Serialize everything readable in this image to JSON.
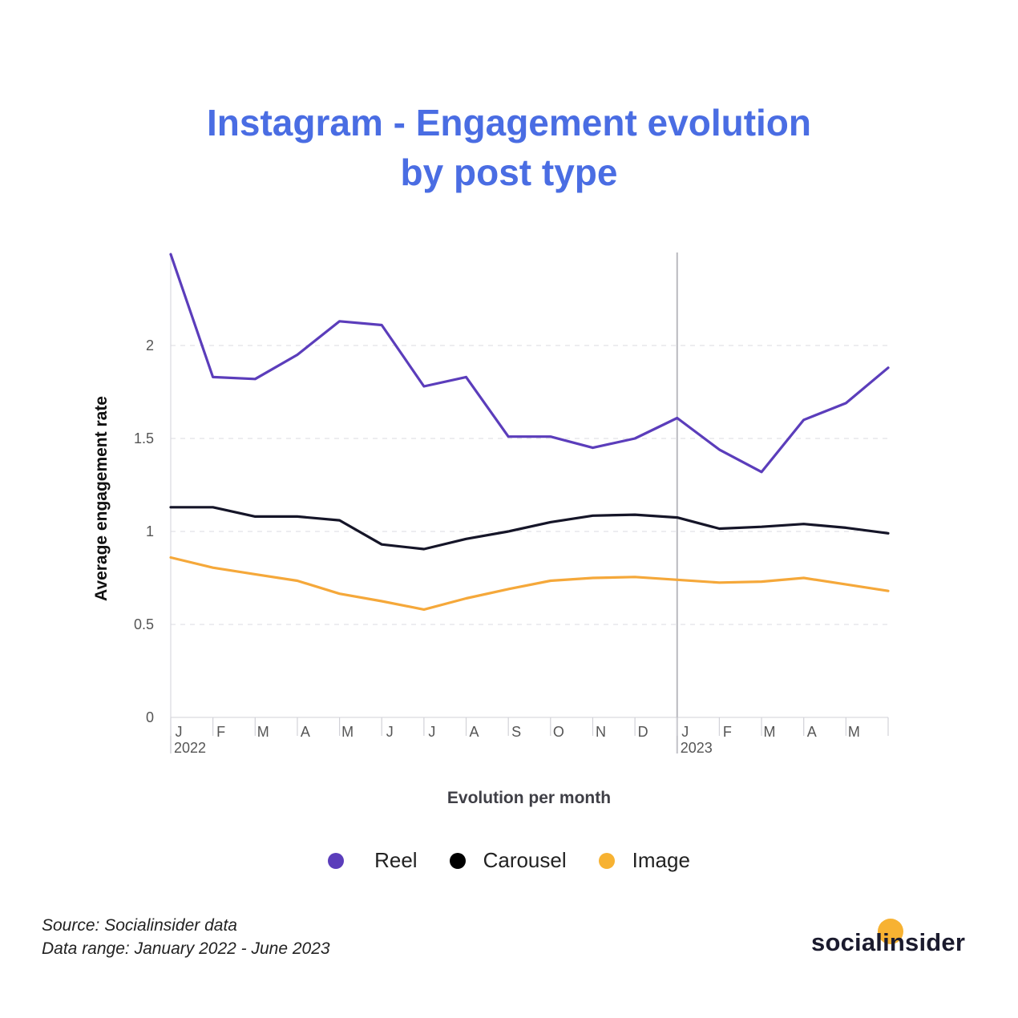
{
  "chart_data": {
    "type": "line",
    "title_lines": [
      "Instagram - Engagement evolution",
      "by post type"
    ],
    "xlabel": "Evolution per month",
    "ylabel": "Average engagement rate",
    "ylim": [
      0,
      2.5
    ],
    "yticks": [
      0,
      0.5,
      1,
      1.5,
      2
    ],
    "ytick_labels": [
      "0",
      "0.5",
      "1",
      "1.5",
      "2"
    ],
    "categories": [
      "J",
      "F",
      "M",
      "A",
      "M",
      "J",
      "J",
      "A",
      "S",
      "O",
      "N",
      "D",
      "J",
      "F",
      "M",
      "A",
      "M",
      ""
    ],
    "year_labels": [
      {
        "index": 0,
        "label": "2022"
      },
      {
        "index": 12,
        "label": "2023"
      }
    ],
    "divider_index": 12,
    "grid": true,
    "series": [
      {
        "name": "Reel",
        "color": "#5b3dbb",
        "values": [
          2.49,
          1.83,
          1.82,
          1.95,
          2.13,
          2.11,
          1.78,
          1.83,
          1.51,
          1.51,
          1.45,
          1.5,
          1.61,
          1.44,
          1.32,
          1.6,
          1.69,
          1.88
        ]
      },
      {
        "name": "Carousel",
        "color": "#151528",
        "values": [
          1.13,
          1.13,
          1.08,
          1.08,
          1.06,
          0.93,
          0.905,
          0.96,
          1.0,
          1.05,
          1.085,
          1.09,
          1.075,
          1.015,
          1.025,
          1.04,
          1.02,
          0.99
        ]
      },
      {
        "name": "Image",
        "color": "#f5a83a",
        "values": [
          0.86,
          0.805,
          0.77,
          0.735,
          0.665,
          0.625,
          0.58,
          0.64,
          0.69,
          0.735,
          0.75,
          0.755,
          0.74,
          0.725,
          0.73,
          0.75,
          0.715,
          0.68
        ]
      }
    ]
  },
  "legend": {
    "items": [
      {
        "label": "Reel",
        "color": "#5b3dbb"
      },
      {
        "label": "Carousel",
        "color": "#000000"
      },
      {
        "label": "Image",
        "color": "#f7b232"
      }
    ]
  },
  "footer": {
    "source": "Source: Socialinsider data",
    "range": "Data range: January 2022 - June 2023"
  },
  "brand": {
    "name": "socialinsider"
  }
}
